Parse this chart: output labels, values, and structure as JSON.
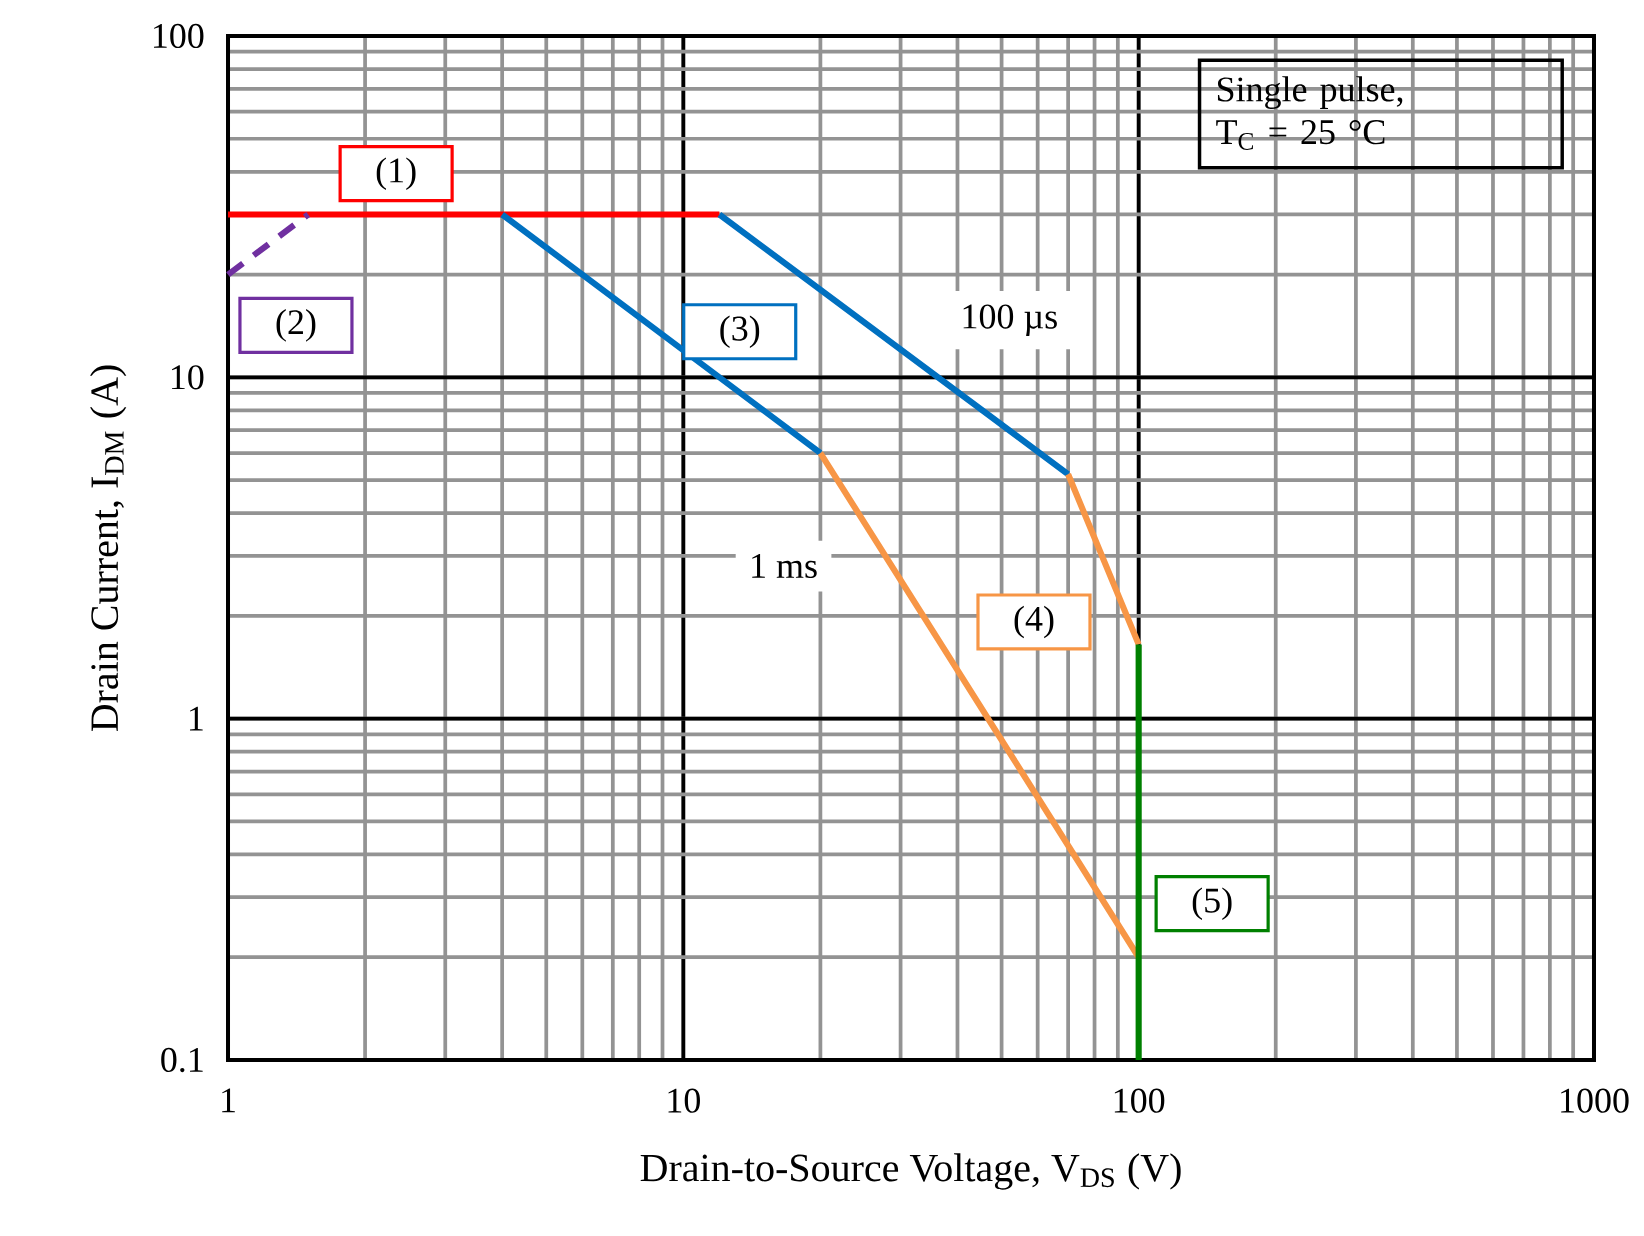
{
  "chart_data": {
    "type": "line",
    "log": "xy",
    "xlabel": "Drain-to-Source Voltage, V$_{DS}$ (V)",
    "ylabel": "Drain Current, I$_{DM}$ (A)",
    "xlim": [
      1,
      1000
    ],
    "ylim": [
      0.1,
      100
    ],
    "xticks": [
      1,
      10,
      100,
      1000
    ],
    "yticks": [
      0.1,
      1,
      10,
      100
    ],
    "grid": true,
    "marker": "none",
    "series": [
      {
        "name": "(1)",
        "color": "#ff0000",
        "x": [
          1,
          12
        ],
        "values": [
          30,
          30
        ]
      },
      {
        "name": "(2)",
        "color": "#7030a0",
        "line_style": "dashed",
        "x": [
          1,
          1.5
        ],
        "values": [
          20,
          30
        ]
      },
      {
        "name": "(3)",
        "color": "#0070c0",
        "x": [
          4,
          20,
          16,
          12,
          70
        ],
        "values": [
          30,
          6,
          null,
          30,
          5.2
        ]
      },
      {
        "name": "(4)",
        "color": "#f79646",
        "x": [
          20,
          100,
          80,
          70,
          100
        ],
        "values": [
          6,
          0.2,
          null,
          5.2,
          1.65
        ]
      },
      {
        "name": "(5)",
        "color": "#008000",
        "x": [
          100,
          100
        ],
        "values": [
          1.65,
          0.1
        ]
      }
    ],
    "annotations": [
      "100 µs",
      "1 ms",
      "Single pulse,",
      "T$_{C}$ = 25 °C"
    ]
  }
}
